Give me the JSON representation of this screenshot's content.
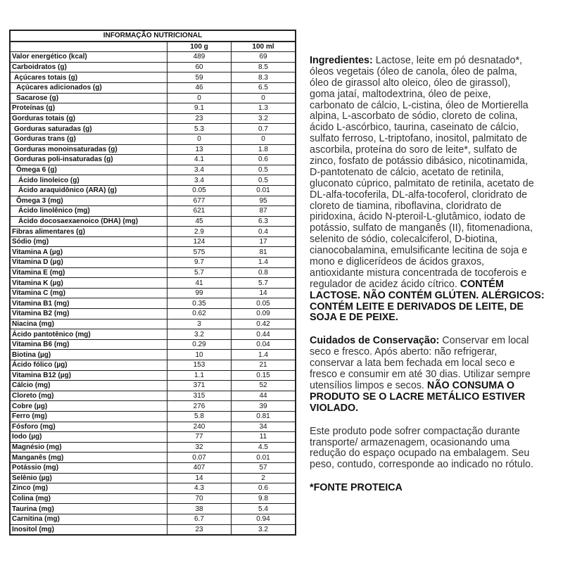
{
  "table": {
    "title": "INFORMAÇÃO NUTRICIONAL",
    "columns": [
      "",
      "100 g",
      "100 ml"
    ],
    "rows": [
      {
        "label": "Valor energético (kcal)",
        "indent": 0,
        "g": "489",
        "ml": "69"
      },
      {
        "label": "Carboidratos (g)",
        "indent": 0,
        "g": "60",
        "ml": "8.5"
      },
      {
        "label": "Açúcares totais (g)",
        "indent": 1,
        "g": "59",
        "ml": "8.3"
      },
      {
        "label": "Açúcares adicionados (g)",
        "indent": 2,
        "g": "46",
        "ml": "6.5"
      },
      {
        "label": "Sacarose (g)",
        "indent": 2,
        "g": "0",
        "ml": "0"
      },
      {
        "label": "Proteínas (g)",
        "indent": 0,
        "g": "9.1",
        "ml": "1.3"
      },
      {
        "label": "Gorduras totais (g)",
        "indent": 0,
        "g": "23",
        "ml": "3.2"
      },
      {
        "label": "Gorduras saturadas (g)",
        "indent": 1,
        "g": "5.3",
        "ml": "0.7"
      },
      {
        "label": "Gorduras trans (g)",
        "indent": 1,
        "g": "0",
        "ml": "0"
      },
      {
        "label": "Gorduras monoinsaturadas (g)",
        "indent": 1,
        "g": "13",
        "ml": "1.8"
      },
      {
        "label": "Gorduras poli-insaturadas (g)",
        "indent": 1,
        "g": "4.1",
        "ml": "0.6"
      },
      {
        "label": "Ômega 6 (g)",
        "indent": 2,
        "g": "3.4",
        "ml": "0.5"
      },
      {
        "label": "Ácido linoleico (g)",
        "indent": 3,
        "g": "3.4",
        "ml": "0.5"
      },
      {
        "label": "Ácido araquidônico (ARA) (g)",
        "indent": 3,
        "g": "0.05",
        "ml": "0.01"
      },
      {
        "label": "Ômega 3 (mg)",
        "indent": 2,
        "g": "677",
        "ml": "95"
      },
      {
        "label": "Ácido linolênico (mg)",
        "indent": 3,
        "g": "621",
        "ml": "87"
      },
      {
        "label": "Ácido docosaexaenoico (DHA) (mg)",
        "indent": 3,
        "g": "45",
        "ml": "6.3"
      },
      {
        "label": "Fibras alimentares (g)",
        "indent": 0,
        "g": "2.9",
        "ml": "0.4"
      },
      {
        "label": "Sódio (mg)",
        "indent": 0,
        "g": "124",
        "ml": "17"
      },
      {
        "label": "Vitamina A (µg)",
        "indent": 0,
        "g": "575",
        "ml": "81"
      },
      {
        "label": "Vitamina D (µg)",
        "indent": 0,
        "g": "9.7",
        "ml": "1.4"
      },
      {
        "label": "Vitamina E (mg)",
        "indent": 0,
        "g": "5.7",
        "ml": "0.8"
      },
      {
        "label": "Vitamina K (µg)",
        "indent": 0,
        "g": "41",
        "ml": "5.7"
      },
      {
        "label": "Vitamina C (mg)",
        "indent": 0,
        "g": "99",
        "ml": "14"
      },
      {
        "label": "Vitamina B1 (mg)",
        "indent": 0,
        "g": "0.35",
        "ml": "0.05"
      },
      {
        "label": "Vitamina B2 (mg)",
        "indent": 0,
        "g": "0.62",
        "ml": "0.09"
      },
      {
        "label": "Niacina (mg)",
        "indent": 0,
        "g": "3",
        "ml": "0.42"
      },
      {
        "label": "Ácido pantotênico (mg)",
        "indent": 0,
        "g": "3.2",
        "ml": "0.44"
      },
      {
        "label": "Vitamina B6 (mg)",
        "indent": 0,
        "g": "0.29",
        "ml": "0.04"
      },
      {
        "label": "Biotina (µg)",
        "indent": 0,
        "g": "10",
        "ml": "1.4"
      },
      {
        "label": "Ácido fólico (µg)",
        "indent": 0,
        "g": "153",
        "ml": "21"
      },
      {
        "label": "Vitamina B12 (µg)",
        "indent": 0,
        "g": "1.1",
        "ml": "0.15"
      },
      {
        "label": "Cálcio (mg)",
        "indent": 0,
        "g": "371",
        "ml": "52"
      },
      {
        "label": "Cloreto (mg)",
        "indent": 0,
        "g": "315",
        "ml": "44"
      },
      {
        "label": "Cobre (µg)",
        "indent": 0,
        "g": "276",
        "ml": "39"
      },
      {
        "label": "Ferro (mg)",
        "indent": 0,
        "g": "5.8",
        "ml": "0.81"
      },
      {
        "label": "Fósforo (mg)",
        "indent": 0,
        "g": "240",
        "ml": "34"
      },
      {
        "label": "Iodo (µg)",
        "indent": 0,
        "g": "77",
        "ml": "11"
      },
      {
        "label": "Magnésio (mg)",
        "indent": 0,
        "g": "32",
        "ml": "4.5"
      },
      {
        "label": "Manganês (mg)",
        "indent": 0,
        "g": "0.07",
        "ml": "0.01"
      },
      {
        "label": "Potássio (mg)",
        "indent": 0,
        "g": "407",
        "ml": "57"
      },
      {
        "label": "Selênio (µg)",
        "indent": 0,
        "g": "14",
        "ml": "2"
      },
      {
        "label": "Zinco (mg)",
        "indent": 0,
        "g": "4.3",
        "ml": "0.6"
      },
      {
        "label": "Colina (mg)",
        "indent": 0,
        "g": "70",
        "ml": "9.8"
      },
      {
        "label": "Taurina (mg)",
        "indent": 0,
        "g": "38",
        "ml": "5.4"
      },
      {
        "label": "Carnitina (mg)",
        "indent": 0,
        "g": "6.7",
        "ml": "0.94"
      },
      {
        "label": "Inositol (mg)",
        "indent": 0,
        "g": "23",
        "ml": "3.2"
      }
    ]
  },
  "text": {
    "paragraphs": [
      [
        {
          "b": "Ingredientes:",
          "t": " Lactose, leite em pó desnatado*,"
        },
        {
          "t": "óleos vegetais (óleo de canola, óleo de palma,"
        },
        {
          "t": "óleo de girassol alto oleico, óleo de girassol),"
        },
        {
          "t": "goma jataí, maltodextrina, óleo de peixe,"
        },
        {
          "t": "carbonato de cálcio, L-cistina, óleo de Mortierella"
        },
        {
          "t": "alpina, L-ascorbato de sódio, cloreto de colina,"
        },
        {
          "t": "ácido L-ascórbico, taurina, caseinato de cálcio,"
        },
        {
          "t": "sulfato ferroso, L-triptofano, inositol, palmitato de"
        },
        {
          "t": "ascorbila, proteína do soro de leite*, sulfato de"
        },
        {
          "t": "zinco, fosfato de potássio dibásico, nicotinamida,"
        },
        {
          "t": "D-pantotenato de cálcio, acetato de retinila,"
        },
        {
          "t": "gluconato cúprico, palmitato de retinila, acetato de"
        },
        {
          "t": "DL-alfa-tocoferila, DL-alfa-tocoferol, cloridrato de"
        },
        {
          "t": "cloreto de tiamina, riboflavina, cloridrato de"
        },
        {
          "t": "piridoxina, ácido N-pteroil-L-glutâmico, iodato de"
        },
        {
          "t": "potássio, sulfato de manganês (II), fitomenadiona,"
        },
        {
          "t": "selenito de sódio, colecalciferol, D-biotina,"
        },
        {
          "t": "cianocobalamina, emulsificante lecitina de soja e"
        },
        {
          "t": "mono e diglicerídeos de ácidos graxos,"
        },
        {
          "t": "antioxidante mistura concentrada de tocoferois e"
        },
        {
          "t": "regulador de acidez ácido cítrico. ",
          "b2": "CONTÉM"
        },
        {
          "b": "LACTOSE. NÃO CONTÉM GLÚTEN. ALÉRGICOS:"
        },
        {
          "b": "CONTÉM LEITE E DERIVADOS DE LEITE, DE"
        },
        {
          "b": "SOJA E DE PEIXE."
        }
      ],
      [
        {
          "b": "Cuidados de Conservação:",
          "t": " Conservar em local"
        },
        {
          "t": "seco e fresco. Após aberto: não refrigerar,"
        },
        {
          "t": "conservar a lata bem fechada em local seco e"
        },
        {
          "t": "fresco e consumir em até 30 dias. Utilizar sempre"
        },
        {
          "t": "utensílios limpos e secos. ",
          "b2": "NÃO CONSUMA O"
        },
        {
          "b": "PRODUTO SE O LACRE METÁLICO ESTIVER"
        },
        {
          "b": "VIOLADO."
        }
      ],
      [
        {
          "t": "Este produto pode sofrer compactação durante"
        },
        {
          "t": "transporte/ armazenagem, ocasionando uma"
        },
        {
          "t": "redução do espaço ocupado na embalagem. Seu"
        },
        {
          "t": "peso, contudo, corresponde ao indicado no rótulo."
        }
      ],
      [
        {
          "b": "*FONTE PROTEICA"
        }
      ]
    ]
  }
}
